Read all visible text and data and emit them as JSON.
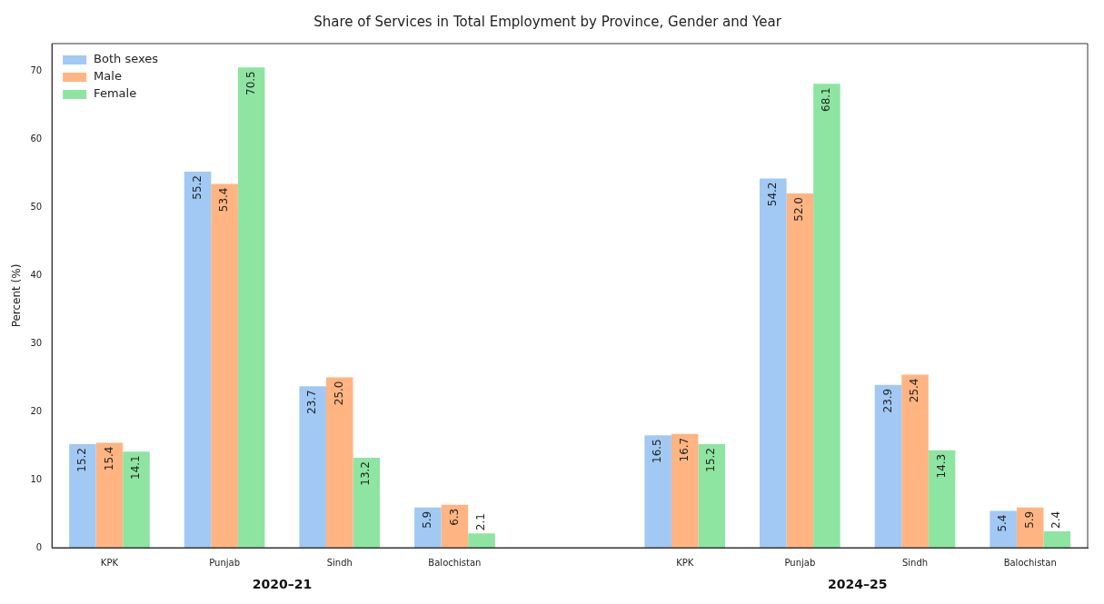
{
  "chart_data": {
    "type": "bar",
    "title": "Share of Services in Total Employment by Province, Gender and Year",
    "ylabel": "Percent (%)",
    "categories": [
      "KPK",
      "Punjab",
      "Sindh",
      "Balochistan",
      null,
      "KPK",
      "Punjab",
      "Sindh",
      "Balochistan"
    ],
    "series": [
      {
        "name": "Both sexes",
        "color": "#a1c9f4",
        "values": [
          15.2,
          55.2,
          23.7,
          5.9,
          null,
          16.5,
          54.2,
          23.9,
          5.4
        ],
        "value_labels": [
          "15.2",
          "55.2",
          "23.7",
          "5.9",
          null,
          "16.5",
          "54.2",
          "23.9",
          "5.4"
        ]
      },
      {
        "name": "Male",
        "color": "#ffb482",
        "values": [
          15.4,
          53.4,
          25.0,
          6.3,
          null,
          16.7,
          52.0,
          25.4,
          5.9
        ],
        "value_labels": [
          "15.4",
          "53.4",
          "25.0",
          "6.3",
          null,
          "16.7",
          "52.0",
          "25.4",
          "5.9"
        ]
      },
      {
        "name": "Female",
        "color": "#8de5a1",
        "values": [
          14.1,
          70.5,
          13.2,
          2.1,
          null,
          15.2,
          68.1,
          14.3,
          2.4
        ],
        "value_labels": [
          "14.1",
          "70.5",
          "13.2",
          "2.1",
          null,
          "15.2",
          "68.1",
          "14.3",
          "2.4"
        ]
      }
    ],
    "ylim": [
      0,
      74
    ],
    "yticks": [
      0,
      10,
      20,
      30,
      40,
      50,
      60,
      70
    ],
    "grid": false,
    "legend": "top left",
    "annotations": [
      "2020–21",
      "2024–25"
    ]
  }
}
